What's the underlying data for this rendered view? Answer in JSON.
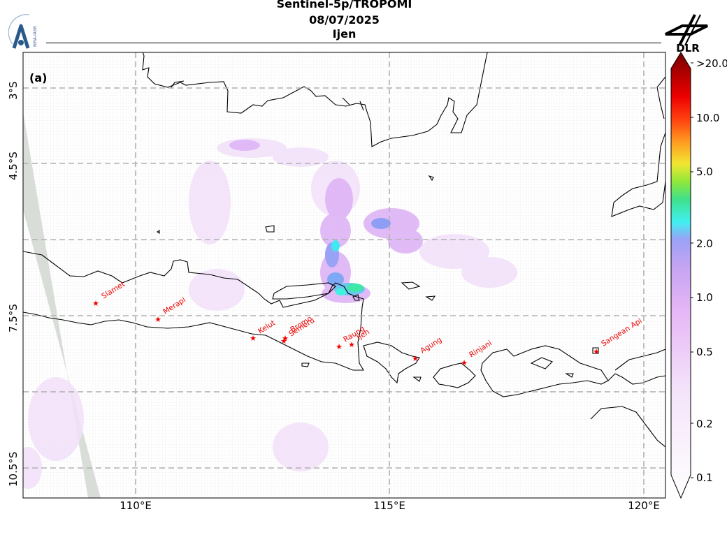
{
  "title": {
    "line1": "Sentinel-5p/TROPOMI",
    "line2": "08/07/2025",
    "line3": "Ijen"
  },
  "panel_label": "(a)",
  "logos": {
    "left_text": "BIRA-IASB",
    "right_text": "DLR"
  },
  "axes": {
    "x_ticks": [
      "110°E",
      "115°E",
      "120°E"
    ],
    "y_ticks": [
      "3°S",
      "4.5°S",
      "7.5°S",
      "10.5°S"
    ]
  },
  "colorbar": {
    "ticks": [
      ">20.0",
      "10.0",
      "5.0",
      "2.0",
      "1.0",
      "0.5",
      "0.2",
      "0.1"
    ],
    "colors": [
      "#ffffff",
      "#f2d8f8",
      "#c8a0f0",
      "#8f9ef5",
      "#3ff0f0",
      "#3de08a",
      "#8ee83a",
      "#f0e030",
      "#ff9020",
      "#ff3010",
      "#e00000",
      "#7a0000"
    ]
  },
  "volcanoes": [
    {
      "name": "Slamet"
    },
    {
      "name": "Merapi"
    },
    {
      "name": "Kelut"
    },
    {
      "name": "Semeru"
    },
    {
      "name": "Bromo"
    },
    {
      "name": "Raung"
    },
    {
      "name": "Ijen"
    },
    {
      "name": "Agung"
    },
    {
      "name": "Rinjani"
    },
    {
      "name": "Sangean Api"
    }
  ],
  "colors": {
    "coastline": "#000000",
    "volcano_marker": "#ee0000",
    "grid": "#b0b0b0",
    "swath_gap": "#d8ddd8"
  }
}
